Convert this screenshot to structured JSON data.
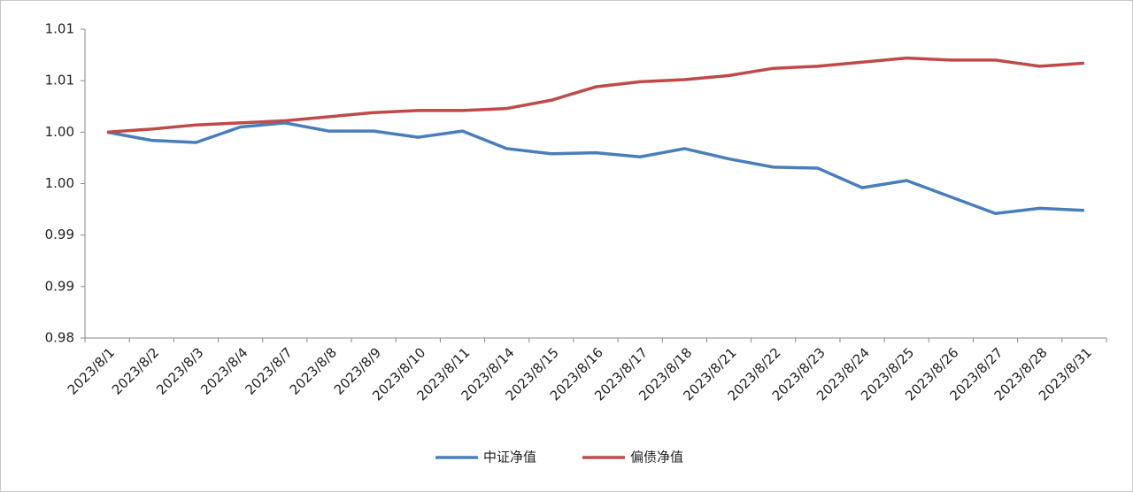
{
  "chart_data": {
    "type": "line",
    "categories": [
      "2023/8/1",
      "2023/8/2",
      "2023/8/3",
      "2023/8/4",
      "2023/8/7",
      "2023/8/8",
      "2023/8/9",
      "2023/8/10",
      "2023/8/11",
      "2023/8/14",
      "2023/8/15",
      "2023/8/16",
      "2023/8/17",
      "2023/8/18",
      "2023/8/21",
      "2023/8/22",
      "2023/8/23",
      "2023/8/24",
      "2023/8/25",
      "2023/8/26",
      "2023/8/27",
      "2023/8/28",
      "2023/8/31"
    ],
    "series": [
      {
        "name": "中证净值",
        "color": "#4a7ebb",
        "values": [
          1.0,
          0.9992,
          0.999,
          1.0005,
          1.0009,
          1.0001,
          1.0001,
          0.9995,
          1.0001,
          0.9984,
          0.9979,
          0.998,
          0.9976,
          0.9984,
          0.9974,
          0.9966,
          0.9965,
          0.9946,
          0.9953,
          0.9937,
          0.9921,
          0.9926,
          0.9924
        ]
      },
      {
        "name": "偏债净值",
        "color": "#be4b48",
        "values": [
          1.0,
          1.0003,
          1.0007,
          1.0009,
          1.0011,
          1.0015,
          1.0019,
          1.0021,
          1.0021,
          1.0023,
          1.0031,
          1.0044,
          1.0049,
          1.0051,
          1.0055,
          1.0062,
          1.0064,
          1.0068,
          1.0072,
          1.007,
          1.007,
          1.0064,
          1.0067
        ]
      }
    ],
    "ylim": [
      0.98,
      1.01
    ],
    "yticks": [
      0.98,
      {
        "value": 0.985,
        "label": "0.99"
      },
      0.99,
      {
        "value": 0.995,
        "label": "1.00"
      },
      {
        "value": 1,
        "label": "1.00"
      },
      {
        "value": 1.005,
        "label": "1.01"
      },
      1.01
    ],
    "grid": false
  }
}
